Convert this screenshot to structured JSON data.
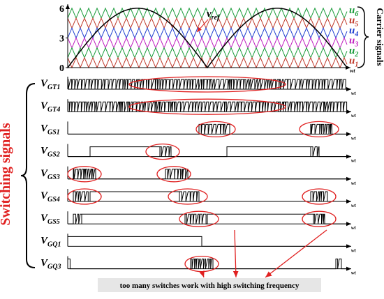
{
  "carrier_plot": {
    "yticks": [
      0,
      3,
      6
    ]
  },
  "reference_label": {
    "main": "v",
    "sub": "ref"
  },
  "carrier_labels": [
    {
      "main": "u",
      "sub": "6"
    },
    {
      "main": "u",
      "sub": "5"
    },
    {
      "main": "u",
      "sub": "4"
    },
    {
      "main": "u",
      "sub": "3"
    },
    {
      "main": "u",
      "sub": "2"
    },
    {
      "main": "u",
      "sub": "1"
    }
  ],
  "carrier_title": "Carrier signals",
  "axis_label": "wt",
  "switching_title": "Switching signals",
  "signals": [
    {
      "main": "V",
      "sub": "GT1"
    },
    {
      "main": "V",
      "sub": "GT4"
    },
    {
      "main": "V",
      "sub": "GS1"
    },
    {
      "main": "V",
      "sub": "GS2"
    },
    {
      "main": "V",
      "sub": "GS3"
    },
    {
      "main": "V",
      "sub": "GS4"
    },
    {
      "main": "V",
      "sub": "GS5"
    },
    {
      "main": "V",
      "sub": "GQ1"
    },
    {
      "main": "V",
      "sub": "GQ3"
    }
  ],
  "annotation": "too many switches work with high switching frequency"
}
